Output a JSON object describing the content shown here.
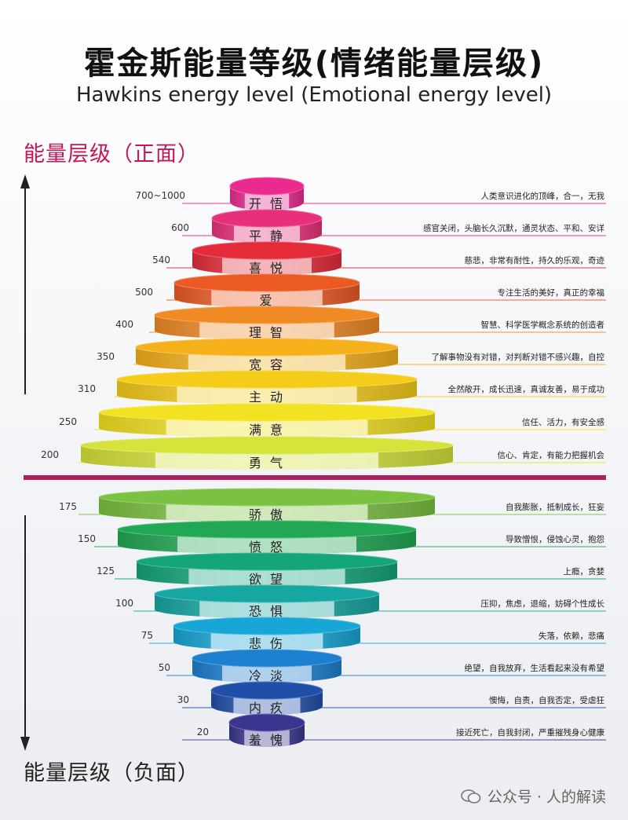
{
  "title": "霍金斯能量等级(情绪能量层级)",
  "subtitle": "Hawkins energy level (Emotional energy level)",
  "positive_label": "能量层级（正面）",
  "negative_label": "能量层级（负面）",
  "watermark": "公众号 · 人的解读",
  "colors": {
    "accent": "#c2185b",
    "divider": "#b0205e"
  },
  "levels": [
    {
      "value": "700~1000",
      "name": "开 悟",
      "desc": "人类意识进化的顶峰，合一，无我",
      "color": "#ea2a8f"
    },
    {
      "value": "600",
      "name": "平 静",
      "desc": "感官关闭，头脑长久沉默，通灵状态、平和、安详",
      "color": "#e8307a"
    },
    {
      "value": "540",
      "name": "喜 悦",
      "desc": "慈悲，非常有耐性，持久的乐观，奇迹",
      "color": "#e42b3a"
    },
    {
      "value": "500",
      "name": "爱",
      "desc": "专注生活的美好，真正的幸福",
      "color": "#ec5a24"
    },
    {
      "value": "400",
      "name": "理 智",
      "desc": "智慧、科学医学概念系统的创造者",
      "color": "#f08a24"
    },
    {
      "value": "350",
      "name": "宽 容",
      "desc": "了解事物没有对错，对判断对错不感兴趣，自控",
      "color": "#f5b01a"
    },
    {
      "value": "310",
      "name": "主 动",
      "desc": "全然敞开，成长迅速，真诚友善，易于成功",
      "color": "#f6cc1a"
    },
    {
      "value": "250",
      "name": "满 意",
      "desc": "信任、活力，有安全感",
      "color": "#f3e222"
    },
    {
      "value": "200",
      "name": "勇 气",
      "desc": "信心、肯定，有能力把握机会",
      "color": "#d6e33a"
    },
    {
      "value": "175",
      "name": "骄 傲",
      "desc": "自我膨胀，抵制成长，狂妄",
      "color": "#7cc242"
    },
    {
      "value": "150",
      "name": "愤 怒",
      "desc": "导致憎恨，侵蚀心灵，抱怨",
      "color": "#22a855"
    },
    {
      "value": "125",
      "name": "欲 望",
      "desc": "上瘾，贪婪",
      "color": "#14a57a"
    },
    {
      "value": "100",
      "name": "恐 惧",
      "desc": "压抑，焦虑，退缩，妨碍个性成长",
      "color": "#16a7a3"
    },
    {
      "value": "75",
      "name": "悲 伤",
      "desc": "失落，依赖，悲痛",
      "color": "#18a6d6"
    },
    {
      "value": "50",
      "name": "冷 淡",
      "desc": "绝望，自我放弃，生活看起来没有希望",
      "color": "#1c7fd0"
    },
    {
      "value": "30",
      "name": "内 疚",
      "desc": "懊悔，自责，自我否定，受虐狂",
      "color": "#1f4fa8"
    },
    {
      "value": "20",
      "name": "羞 愧",
      "desc": "接近死亡，自我封闭，严重摧残身心健康",
      "color": "#3a3690"
    }
  ]
}
